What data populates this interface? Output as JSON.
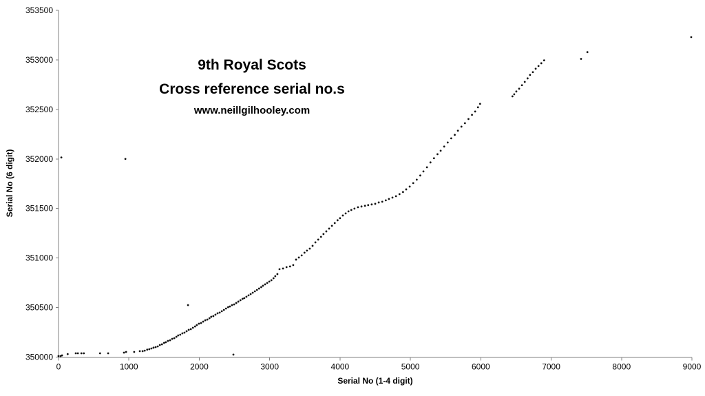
{
  "chart_data": {
    "type": "scatter",
    "title": "9th Royal Scots",
    "subtitle": "Cross reference serial no.s",
    "watermark": "www.neillgilhooley.com",
    "xlabel": "Serial No (1-4 digit)",
    "ylabel": "Serial No (6 digit)",
    "xlim": [
      0,
      9000
    ],
    "ylim": [
      350000,
      353500
    ],
    "x_ticks": [
      0,
      1000,
      2000,
      3000,
      4000,
      5000,
      6000,
      7000,
      8000,
      9000
    ],
    "y_ticks": [
      350000,
      350500,
      351000,
      351500,
      352000,
      352500,
      353000,
      353500
    ],
    "grid": false,
    "legend": "none",
    "axis_color": "#808080",
    "marker_color": "#111111",
    "marker_radius": 1.4,
    "points": [
      [
        0,
        350010
      ],
      [
        30,
        350010
      ],
      [
        40,
        352015
      ],
      [
        50,
        350017
      ],
      [
        130,
        350030
      ],
      [
        245,
        350038
      ],
      [
        275,
        350038
      ],
      [
        325,
        350038
      ],
      [
        360,
        350038
      ],
      [
        590,
        350038
      ],
      [
        705,
        350038
      ],
      [
        930,
        350045
      ],
      [
        950,
        352000
      ],
      [
        960,
        350052
      ],
      [
        1075,
        350052
      ],
      [
        1155,
        350060
      ],
      [
        1195,
        350060
      ],
      [
        1225,
        350065
      ],
      [
        1260,
        350075
      ],
      [
        1290,
        350080
      ],
      [
        1320,
        350087
      ],
      [
        1350,
        350095
      ],
      [
        1380,
        350101
      ],
      [
        1410,
        350108
      ],
      [
        1440,
        350122
      ],
      [
        1470,
        350129
      ],
      [
        1500,
        350143
      ],
      [
        1525,
        350150
      ],
      [
        1555,
        350163
      ],
      [
        1585,
        350170
      ],
      [
        1615,
        350184
      ],
      [
        1645,
        350191
      ],
      [
        1675,
        350205
      ],
      [
        1700,
        350219
      ],
      [
        1730,
        350226
      ],
      [
        1760,
        350240
      ],
      [
        1790,
        350247
      ],
      [
        1820,
        350261
      ],
      [
        1840,
        350525
      ],
      [
        1850,
        350275
      ],
      [
        1880,
        350282
      ],
      [
        1910,
        350296
      ],
      [
        1940,
        350309
      ],
      [
        1965,
        350323
      ],
      [
        1995,
        350337
      ],
      [
        2025,
        350344
      ],
      [
        2055,
        350358
      ],
      [
        2085,
        350372
      ],
      [
        2115,
        350379
      ],
      [
        2145,
        350393
      ],
      [
        2170,
        350407
      ],
      [
        2200,
        350414
      ],
      [
        2230,
        350428
      ],
      [
        2260,
        350442
      ],
      [
        2290,
        350449
      ],
      [
        2320,
        350463
      ],
      [
        2350,
        350476
      ],
      [
        2380,
        350490
      ],
      [
        2410,
        350504
      ],
      [
        2435,
        350511
      ],
      [
        2465,
        350525
      ],
      [
        2485,
        350025
      ],
      [
        2495,
        350532
      ],
      [
        2525,
        350546
      ],
      [
        2555,
        350560
      ],
      [
        2585,
        350574
      ],
      [
        2615,
        350588
      ],
      [
        2640,
        350595
      ],
      [
        2670,
        350609
      ],
      [
        2700,
        350623
      ],
      [
        2730,
        350636
      ],
      [
        2760,
        350650
      ],
      [
        2790,
        350664
      ],
      [
        2820,
        350678
      ],
      [
        2850,
        350692
      ],
      [
        2880,
        350706
      ],
      [
        2905,
        350720
      ],
      [
        2935,
        350734
      ],
      [
        2965,
        350748
      ],
      [
        2995,
        350762
      ],
      [
        3025,
        350776
      ],
      [
        3055,
        350796
      ],
      [
        3080,
        350817
      ],
      [
        3110,
        350838
      ],
      [
        3140,
        350887
      ],
      [
        3190,
        350894
      ],
      [
        3240,
        350908
      ],
      [
        3290,
        350915
      ],
      [
        3335,
        350929
      ],
      [
        3375,
        350984
      ],
      [
        3415,
        351005
      ],
      [
        3455,
        351026
      ],
      [
        3495,
        351054
      ],
      [
        3530,
        351075
      ],
      [
        3570,
        351095
      ],
      [
        3610,
        351123
      ],
      [
        3650,
        351158
      ],
      [
        3690,
        351186
      ],
      [
        3730,
        351214
      ],
      [
        3765,
        351242
      ],
      [
        3805,
        351269
      ],
      [
        3845,
        351297
      ],
      [
        3885,
        351325
      ],
      [
        3925,
        351353
      ],
      [
        3965,
        351381
      ],
      [
        4000,
        351402
      ],
      [
        4040,
        351429
      ],
      [
        4080,
        351450
      ],
      [
        4120,
        351471
      ],
      [
        4160,
        351485
      ],
      [
        4205,
        351499
      ],
      [
        4255,
        351513
      ],
      [
        4305,
        351520
      ],
      [
        4355,
        351527
      ],
      [
        4400,
        351534
      ],
      [
        4450,
        351541
      ],
      [
        4500,
        351547
      ],
      [
        4550,
        351561
      ],
      [
        4600,
        351568
      ],
      [
        4650,
        351582
      ],
      [
        4695,
        351596
      ],
      [
        4745,
        351610
      ],
      [
        4795,
        351624
      ],
      [
        4845,
        351645
      ],
      [
        4895,
        351666
      ],
      [
        4940,
        351693
      ],
      [
        4990,
        351721
      ],
      [
        5040,
        351756
      ],
      [
        5090,
        351791
      ],
      [
        5140,
        351833
      ],
      [
        5185,
        351874
      ],
      [
        5235,
        351916
      ],
      [
        5285,
        351965
      ],
      [
        5335,
        352007
      ],
      [
        5385,
        352048
      ],
      [
        5430,
        352083
      ],
      [
        5480,
        352125
      ],
      [
        5530,
        352166
      ],
      [
        5580,
        352208
      ],
      [
        5630,
        352243
      ],
      [
        5675,
        352285
      ],
      [
        5725,
        352326
      ],
      [
        5775,
        352361
      ],
      [
        5825,
        352403
      ],
      [
        5875,
        352445
      ],
      [
        5920,
        352479
      ],
      [
        5960,
        352521
      ],
      [
        5990,
        352556
      ],
      [
        6450,
        352632
      ],
      [
        6475,
        352653
      ],
      [
        6505,
        352681
      ],
      [
        6545,
        352709
      ],
      [
        6585,
        352744
      ],
      [
        6625,
        352778
      ],
      [
        6665,
        352813
      ],
      [
        6700,
        352848
      ],
      [
        6740,
        352876
      ],
      [
        6780,
        352911
      ],
      [
        6820,
        352938
      ],
      [
        6860,
        352966
      ],
      [
        6900,
        352995
      ],
      [
        7425,
        353010
      ],
      [
        7515,
        353078
      ],
      [
        8990,
        353230
      ]
    ]
  }
}
